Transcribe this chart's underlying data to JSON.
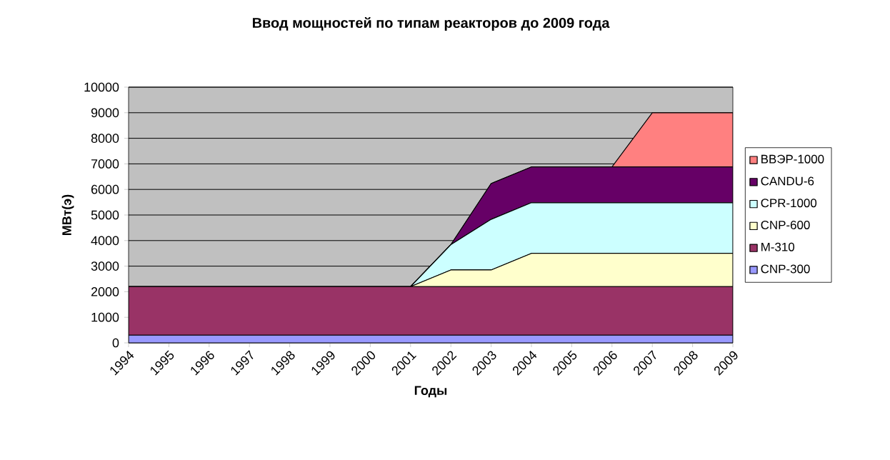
{
  "chart_data": {
    "type": "area",
    "title": "Ввод мощностей по типам реакторов до 2009 года",
    "xlabel": "Годы",
    "ylabel": "МВт(э)",
    "categories": [
      "1994",
      "1995",
      "1996",
      "1997",
      "1998",
      "1999",
      "2000",
      "2001",
      "2002",
      "2003",
      "2004",
      "2005",
      "2006",
      "2007",
      "2008",
      "2009"
    ],
    "stacked": true,
    "series": [
      {
        "name": "CNP-300",
        "color": "#9999ff",
        "values": [
          300,
          300,
          300,
          300,
          300,
          300,
          300,
          300,
          300,
          300,
          300,
          300,
          300,
          300,
          300,
          300
        ]
      },
      {
        "name": "M-310",
        "color": "#993366",
        "values": [
          1900,
          1900,
          1900,
          1900,
          1900,
          1900,
          1900,
          1900,
          1900,
          1900,
          1900,
          1900,
          1900,
          1900,
          1900,
          1900
        ]
      },
      {
        "name": "CNP-600",
        "color": "#ffffcc",
        "values": [
          0,
          0,
          0,
          0,
          0,
          0,
          0,
          0,
          650,
          650,
          1300,
          1300,
          1300,
          1300,
          1300,
          1300
        ]
      },
      {
        "name": "CPR-1000",
        "color": "#ccffff",
        "values": [
          0,
          0,
          0,
          0,
          0,
          0,
          0,
          0,
          990,
          1980,
          1980,
          1980,
          1980,
          1980,
          1980,
          1980
        ]
      },
      {
        "name": "CANDU-6",
        "color": "#660066",
        "values": [
          0,
          0,
          0,
          0,
          0,
          0,
          0,
          0,
          0,
          1400,
          1400,
          1400,
          1400,
          1400,
          1400,
          1400
        ]
      },
      {
        "name": "ВВЭР-1000",
        "color": "#ff8080",
        "values": [
          0,
          0,
          0,
          0,
          0,
          0,
          0,
          0,
          0,
          0,
          0,
          0,
          0,
          2120,
          2120,
          2120
        ]
      }
    ],
    "ylim": [
      0,
      10000
    ],
    "yticks": [
      0,
      1000,
      2000,
      3000,
      4000,
      5000,
      6000,
      7000,
      8000,
      9000,
      10000
    ],
    "grid": "y",
    "legend": "right",
    "marker": "none"
  }
}
